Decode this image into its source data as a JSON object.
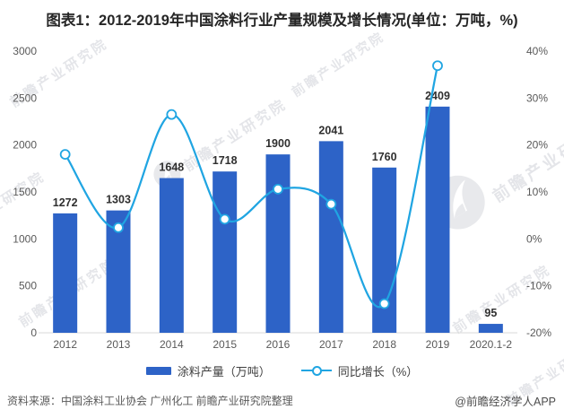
{
  "title": "图表1：2012-2019年中国涂料行业产量规模及增长情况(单位：万吨，%)",
  "chart_data": {
    "type": "bar+line combo",
    "categories": [
      "2012",
      "2013",
      "2014",
      "2015",
      "2016",
      "2017",
      "2018",
      "2019",
      "2020.1-2"
    ],
    "series": [
      {
        "name": "涂料产量（万吨）",
        "type": "bar",
        "axis": "left",
        "values": [
          1272,
          1303,
          1648,
          1718,
          1900,
          2041,
          1760,
          2409,
          95
        ]
      },
      {
        "name": "同比增长（%）",
        "type": "line",
        "axis": "right",
        "values": [
          18.0,
          2.4,
          26.5,
          4.2,
          10.6,
          7.4,
          -13.8,
          36.9,
          null
        ]
      }
    ],
    "left_axis": {
      "min": 0,
      "max": 3000,
      "step": 500,
      "ticks": [
        "0",
        "500",
        "1000",
        "1500",
        "2000",
        "2500",
        "3000"
      ]
    },
    "right_axis": {
      "min": -20,
      "max": 40,
      "step": 10,
      "ticks": [
        "-20%",
        "-10%",
        "0%",
        "10%",
        "20%",
        "30%",
        "40%"
      ]
    },
    "grid": false,
    "legend_position": "bottom",
    "value_labels_visible": true
  },
  "legend_note": "legend labels bind to chart_data.series names",
  "footer": {
    "source": "资料来源：中国涂料工业协会 广州化工 前瞻产业研究院整理",
    "brand": "@前瞻经济学人APP"
  },
  "watermark": {
    "text": "前瞻产业研究院",
    "logo": "qianzhan-phoenix-logo"
  },
  "colors": {
    "bar": "#2d63c7",
    "line": "#20a5e2",
    "axis_text": "#595959",
    "category_text": "#595959",
    "value_label": "#2f2f2f",
    "title_text": "#262626",
    "baseline": "#d9d9d9",
    "marker_fill": "#ffffff",
    "watermark": "#b9bdc6"
  }
}
